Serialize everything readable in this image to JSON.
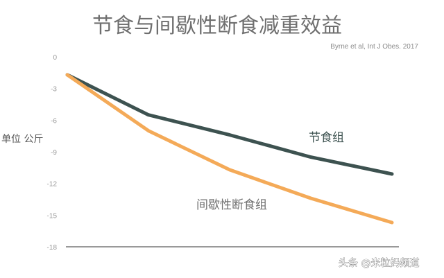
{
  "chart_data": {
    "type": "line",
    "title": "节食与间歇性断食减重效益",
    "source": "Byrne et al, Int J Obes. 2017",
    "ylabel": "单位 公斤",
    "xlabel": "",
    "ylim": [
      -18,
      0
    ],
    "yticks": [
      0,
      -3,
      -6,
      -9,
      -12,
      -15,
      -18
    ],
    "grid": false,
    "x": [
      0,
      1,
      2,
      3,
      4
    ],
    "series": [
      {
        "name": "节食组",
        "values": [
          -1.7,
          -5.5,
          -7.4,
          -9.5,
          -11.1
        ],
        "color": "#3d5250"
      },
      {
        "name": "间歇性断食组",
        "values": [
          -1.7,
          -7.0,
          -10.7,
          -13.4,
          -15.7
        ],
        "color": "#f4aa58"
      }
    ]
  },
  "watermark": "头条 @米粒妈频道"
}
